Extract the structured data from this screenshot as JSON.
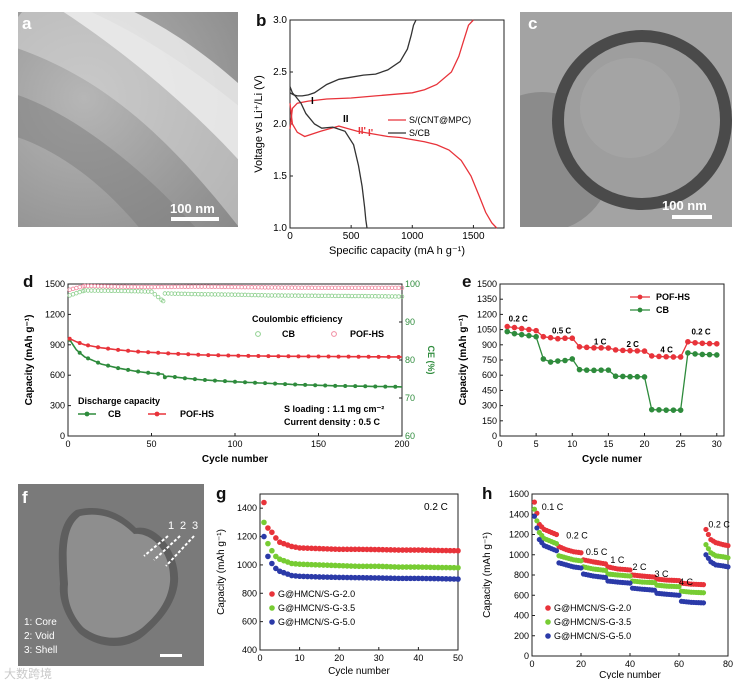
{
  "panels": {
    "a": {
      "label": "a",
      "scale": "100 nm"
    },
    "b": {
      "label": "b"
    },
    "c": {
      "label": "c",
      "scale": "100 nm"
    },
    "d": {
      "label": "d"
    },
    "e": {
      "label": "e"
    },
    "f": {
      "label": "f",
      "legend": [
        "1: Core",
        "2: Void",
        "3: Shell"
      ],
      "markers": [
        "1",
        "2",
        "3"
      ]
    },
    "g": {
      "label": "g"
    },
    "h": {
      "label": "h"
    }
  },
  "watermark": "大数跨境",
  "colors": {
    "red": "#e8333a",
    "green": "#2e8b3c",
    "black": "#222222",
    "lightgreen": "#77cc33",
    "blue": "#2b3aa8",
    "pink": "#f08aa0",
    "palegreen": "#8fd08f"
  },
  "chart_data": [
    {
      "id": "b",
      "type": "line",
      "xlabel": "Specific capacity (mA h g⁻¹)",
      "ylabel": "Voltage vs Li⁺/Li (V)",
      "xlim": [
        0,
        1750
      ],
      "ylim": [
        1.0,
        3.0
      ],
      "xticks": [
        "0",
        "500",
        "1000",
        "1500"
      ],
      "yticks": [
        "1.0",
        "1.5",
        "2.0",
        "2.5",
        "3.0"
      ],
      "annotations": [
        "I",
        "II",
        "I'",
        "II'"
      ],
      "legend": [
        "S/(CNT@MPC)",
        "S/CB"
      ],
      "series": [
        {
          "name": "S/(CNT@MPC)",
          "segment": "charge",
          "x": [
            0,
            20,
            60,
            150,
            300,
            500,
            700,
            900,
            1000,
            1100,
            1200,
            1320,
            1380,
            1420,
            1460,
            1500
          ],
          "y": [
            1.95,
            2.15,
            2.2,
            2.22,
            2.24,
            2.25,
            2.27,
            2.29,
            2.3,
            2.33,
            2.38,
            2.5,
            2.65,
            2.8,
            2.95,
            3.0
          ]
        },
        {
          "name": "S/(CNT@MPC)",
          "segment": "discharge",
          "x": [
            0,
            20,
            60,
            120,
            250,
            400,
            550,
            700,
            800,
            900,
            1000,
            1100,
            1200,
            1300,
            1400,
            1480,
            1550,
            1600,
            1650,
            1690
          ],
          "y": [
            2.2,
            2.0,
            1.92,
            1.88,
            1.93,
            1.98,
            1.93,
            1.9,
            1.88,
            1.87,
            1.85,
            1.83,
            1.8,
            1.75,
            1.65,
            1.5,
            1.3,
            1.15,
            1.05,
            1.0
          ]
        },
        {
          "name": "S/CB",
          "segment": "charge",
          "x": [
            0,
            30,
            60,
            100,
            150,
            200,
            300,
            400,
            500,
            600,
            700,
            800,
            900,
            960,
            990,
            1010,
            1030
          ],
          "y": [
            2.3,
            2.28,
            2.27,
            2.27,
            2.28,
            2.3,
            2.38,
            2.43,
            2.45,
            2.47,
            2.48,
            2.52,
            2.6,
            2.72,
            2.85,
            2.95,
            3.0
          ]
        },
        {
          "name": "S/CB",
          "segment": "discharge",
          "x": [
            0,
            20,
            50,
            90,
            130,
            200,
            260,
            350,
            450,
            520,
            560,
            590,
            610,
            620,
            630
          ],
          "y": [
            2.36,
            2.3,
            2.26,
            2.2,
            2.1,
            2.0,
            1.96,
            1.97,
            1.93,
            1.8,
            1.6,
            1.4,
            1.2,
            1.08,
            1.0
          ]
        }
      ]
    },
    {
      "id": "d",
      "type": "scatter",
      "xlabel": "Cycle number",
      "ylabel": "Capacity (mAh g⁻¹)",
      "y2label": "CE (%)",
      "xlim": [
        0,
        200
      ],
      "ylim": [
        0,
        1500
      ],
      "y2lim": [
        60,
        100
      ],
      "xticks": [
        "0",
        "50",
        "100",
        "150",
        "200"
      ],
      "yticks": [
        "0",
        "300",
        "600",
        "900",
        "1200",
        "1500"
      ],
      "y2ticks": [
        "60",
        "70",
        "80",
        "90",
        "100"
      ],
      "annotations": [
        "Coulombic efficiency",
        "Discharge capacity",
        "S loading : 1.1 mg cm⁻²",
        "Current density : 0.5 C"
      ],
      "legend": [
        "CB",
        "POF-HS",
        "CB",
        "POF-HS"
      ],
      "series": [
        {
          "name": "CB",
          "kind": "capacity",
          "x": [
            1,
            5,
            10,
            20,
            30,
            40,
            50,
            57,
            58,
            60,
            70,
            80,
            100,
            120,
            140,
            160,
            180,
            200
          ],
          "y": [
            950,
            850,
            780,
            710,
            670,
            640,
            620,
            610,
            580,
            590,
            570,
            555,
            535,
            520,
            505,
            495,
            490,
            485
          ]
        },
        {
          "name": "POF-HS",
          "kind": "capacity",
          "x": [
            1,
            5,
            10,
            20,
            30,
            40,
            50,
            60,
            70,
            80,
            100,
            120,
            140,
            160,
            180,
            200
          ],
          "y": [
            960,
            930,
            900,
            870,
            850,
            835,
            825,
            815,
            808,
            800,
            793,
            788,
            786,
            784,
            782,
            780
          ]
        },
        {
          "name": "CB",
          "kind": "ce",
          "x": [
            1,
            10,
            30,
            50,
            57,
            58,
            60,
            80,
            100,
            120,
            150,
            180,
            200
          ],
          "y": [
            97,
            98.3,
            98.2,
            98.0,
            95.5,
            97.5,
            97.5,
            97.3,
            97.2,
            97.0,
            96.9,
            96.8,
            96.7
          ]
        },
        {
          "name": "POF-HS",
          "kind": "ce",
          "x": [
            1,
            10,
            30,
            50,
            80,
            100,
            120,
            150,
            180,
            200
          ],
          "y": [
            98.5,
            99.5,
            99.3,
            99.2,
            99.3,
            99.2,
            99.1,
            99.0,
            99.0,
            99.0
          ]
        }
      ]
    },
    {
      "id": "e",
      "type": "line",
      "xlabel": "Cycle numer",
      "ylabel": "Capacity (mAh g⁻¹)",
      "xlim": [
        0,
        31
      ],
      "ylim": [
        0,
        1500
      ],
      "xticks": [
        "0",
        "5",
        "10",
        "15",
        "20",
        "25",
        "30"
      ],
      "yticks": [
        "0",
        "150",
        "300",
        "450",
        "600",
        "750",
        "900",
        "1050",
        "1200",
        "1350",
        "1500"
      ],
      "annotations": [
        "0.2 C",
        "0.5 C",
        "1 C",
        "2 C",
        "4 C",
        "0.2 C"
      ],
      "legend": [
        "POF-HS",
        "CB"
      ],
      "series": [
        {
          "name": "POF-HS",
          "x": [
            1,
            2,
            3,
            4,
            5,
            6,
            7,
            8,
            9,
            10,
            11,
            12,
            13,
            14,
            15,
            16,
            17,
            18,
            19,
            20,
            21,
            22,
            23,
            24,
            25,
            26,
            27,
            28,
            29,
            30
          ],
          "y": [
            1080,
            1070,
            1060,
            1050,
            1040,
            980,
            970,
            960,
            965,
            965,
            880,
            875,
            870,
            870,
            868,
            850,
            845,
            842,
            840,
            838,
            790,
            785,
            782,
            780,
            780,
            930,
            920,
            915,
            912,
            910
          ]
        },
        {
          "name": "CB",
          "x": [
            1,
            2,
            3,
            4,
            5,
            6,
            7,
            8,
            9,
            10,
            11,
            12,
            13,
            14,
            15,
            16,
            17,
            18,
            19,
            20,
            21,
            22,
            23,
            24,
            25,
            26,
            27,
            28,
            29,
            30
          ],
          "y": [
            1030,
            1010,
            1000,
            990,
            980,
            760,
            730,
            740,
            745,
            760,
            655,
            650,
            648,
            650,
            650,
            590,
            588,
            585,
            585,
            583,
            260,
            258,
            255,
            255,
            255,
            820,
            810,
            805,
            803,
            800
          ]
        }
      ]
    },
    {
      "id": "g",
      "type": "scatter",
      "xlabel": "Cycle number",
      "ylabel": "Capacity (mAh g⁻¹)",
      "xlim": [
        0,
        50
      ],
      "ylim": [
        400,
        1500
      ],
      "xticks": [
        "0",
        "10",
        "20",
        "30",
        "40",
        "50"
      ],
      "yticks": [
        "400",
        "600",
        "800",
        "1000",
        "1200",
        "1400"
      ],
      "annotations": [
        "0.2 C"
      ],
      "legend": [
        "G@HMCN/S-G-2.0",
        "G@HMCN/S-G-3.5",
        "G@HMCN/S-G-5.0"
      ],
      "series": [
        {
          "name": "G@HMCN/S-G-2.0",
          "x": [
            1,
            2,
            3,
            4,
            5,
            6,
            7,
            8,
            10,
            15,
            20,
            25,
            30,
            35,
            40,
            45,
            50
          ],
          "y": [
            1440,
            1260,
            1230,
            1190,
            1160,
            1150,
            1140,
            1130,
            1120,
            1115,
            1110,
            1110,
            1108,
            1105,
            1105,
            1102,
            1100
          ]
        },
        {
          "name": "G@HMCN/S-G-3.5",
          "x": [
            1,
            2,
            3,
            4,
            5,
            6,
            7,
            8,
            10,
            15,
            20,
            25,
            30,
            35,
            40,
            45,
            50
          ],
          "y": [
            1300,
            1150,
            1100,
            1060,
            1040,
            1030,
            1020,
            1010,
            1005,
            1000,
            995,
            990,
            990,
            985,
            985,
            982,
            980
          ]
        },
        {
          "name": "G@HMCN/S-G-5.0",
          "x": [
            1,
            2,
            3,
            4,
            5,
            6,
            7,
            8,
            10,
            15,
            20,
            25,
            30,
            35,
            40,
            45,
            50
          ],
          "y": [
            1200,
            1060,
            1010,
            975,
            955,
            945,
            935,
            925,
            920,
            915,
            912,
            910,
            908,
            905,
            905,
            903,
            900
          ]
        }
      ]
    },
    {
      "id": "h",
      "type": "scatter",
      "xlabel": "Cycle number",
      "ylabel": "Capacity (mAh g⁻¹)",
      "xlim": [
        0,
        80
      ],
      "ylim": [
        0,
        1600
      ],
      "xticks": [
        "0",
        "20",
        "40",
        "60",
        "80"
      ],
      "yticks": [
        "0",
        "200",
        "400",
        "600",
        "800",
        "1000",
        "1200",
        "1400",
        "1600"
      ],
      "annotations": [
        "0.1 C",
        "0.2 C",
        "0.5 C",
        "1 C",
        "2 C",
        "3 C",
        "4 C",
        "0.2 C"
      ],
      "legend": [
        "G@HMCN/S-G-2.0",
        "G@HMCN/S-G-3.5",
        "G@HMCN/S-G-5.0"
      ],
      "series": [
        {
          "name": "G@HMCN/S-G-2.0",
          "x": [
            1,
            3,
            5,
            8,
            10,
            11,
            14,
            17,
            20,
            21,
            25,
            30,
            31,
            35,
            40,
            41,
            45,
            50,
            51,
            55,
            60,
            61,
            65,
            70,
            71,
            73,
            75,
            78,
            80
          ],
          "y": [
            1520,
            1300,
            1250,
            1220,
            1200,
            1080,
            1050,
            1030,
            1020,
            950,
            930,
            910,
            880,
            860,
            850,
            800,
            790,
            780,
            760,
            750,
            745,
            720,
            710,
            705,
            1250,
            1150,
            1120,
            1100,
            1090
          ]
        },
        {
          "name": "G@HMCN/S-G-3.5",
          "x": [
            1,
            3,
            5,
            8,
            10,
            11,
            14,
            17,
            20,
            21,
            25,
            30,
            31,
            35,
            40,
            41,
            45,
            50,
            51,
            55,
            60,
            61,
            65,
            70,
            71,
            73,
            75,
            78,
            80
          ],
          "y": [
            1450,
            1220,
            1160,
            1130,
            1110,
            990,
            970,
            950,
            940,
            880,
            860,
            845,
            810,
            800,
            790,
            740,
            730,
            725,
            700,
            690,
            685,
            640,
            630,
            625,
            1100,
            1020,
            990,
            980,
            970
          ]
        },
        {
          "name": "G@HMCN/S-G-5.0",
          "x": [
            1,
            3,
            5,
            8,
            10,
            11,
            14,
            17,
            20,
            21,
            25,
            30,
            31,
            35,
            40,
            41,
            45,
            50,
            51,
            55,
            60,
            61,
            65,
            70,
            71,
            73,
            75,
            78,
            80
          ],
          "y": [
            1380,
            1150,
            1090,
            1060,
            1040,
            920,
            900,
            880,
            870,
            810,
            790,
            775,
            740,
            730,
            720,
            670,
            660,
            650,
            620,
            610,
            600,
            540,
            530,
            525,
            1000,
            930,
            900,
            890,
            880
          ]
        }
      ]
    }
  ]
}
